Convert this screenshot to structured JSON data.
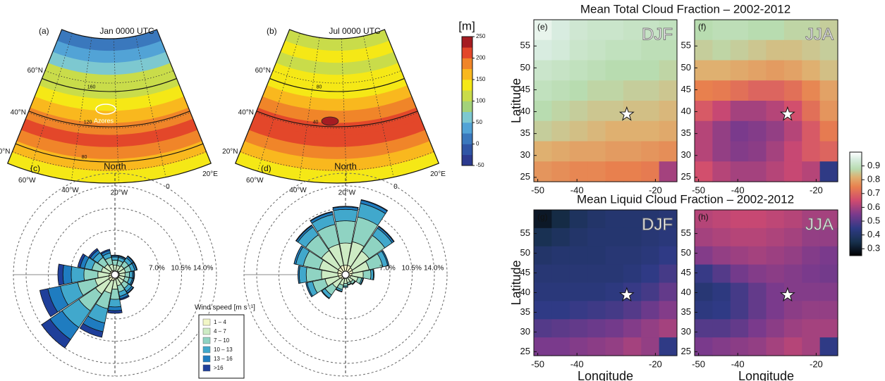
{
  "chart_data": [
    {
      "type": "map",
      "label": "(a)",
      "title": "Jan 0000 UTC",
      "lat_labels": [
        "60°N",
        "40°N",
        "20°N"
      ],
      "lon_labels": [
        "60°W",
        "40°W",
        "20°W",
        "0",
        "20°E"
      ],
      "bands": [
        10,
        40,
        70,
        100,
        120,
        140,
        160,
        185,
        205,
        190,
        160,
        130
      ],
      "contour_labels": [
        "160",
        "120",
        "80"
      ],
      "annotation": "Azores"
    },
    {
      "type": "map",
      "label": "(b)",
      "title": "Jul 0000 UTC",
      "lat_labels": [
        "60°N",
        "40°N",
        "20°N"
      ],
      "lon_labels": [
        "60°W",
        "40°W",
        "20°W",
        "0",
        "20°E"
      ],
      "bands": [
        110,
        125,
        110,
        125,
        140,
        160,
        180,
        200,
        215,
        190,
        160,
        140
      ],
      "contour_labels": [
        "80",
        "40"
      ]
    },
    {
      "type": "colorbar",
      "title": "[m]",
      "lim": [
        -50,
        250
      ],
      "ticks": [
        250,
        200,
        150,
        100,
        50,
        0,
        -50
      ],
      "colors": [
        "#2c3a8f",
        "#2f55a5",
        "#3a78bd",
        "#52a3d6",
        "#7dc8d0",
        "#a3d27a",
        "#c9dc4a",
        "#f5e816",
        "#f9b81e",
        "#f08529",
        "#e3472a",
        "#a51c22"
      ]
    },
    {
      "type": "windrose",
      "label": "(c)",
      "direction_label": "North",
      "rlim": [
        0,
        16
      ],
      "rticks": [
        {
          "value": 7,
          "label": "7.0%"
        },
        {
          "value": 10.5,
          "label": "10.5%"
        },
        {
          "value": 14,
          "label": "14.0%"
        }
      ],
      "legend_title": "Wind speed [m s⁻¹]",
      "series": [
        {
          "name": "1 – 4",
          "color": "#f2f6c6",
          "values": [
            0.6,
            0.6,
            0.7,
            0.7,
            0.7,
            0.7,
            0.7,
            0.7,
            0.8,
            1.0,
            1.2,
            1.0,
            0.9,
            0.8,
            0.8,
            0.7
          ]
        },
        {
          "name": "4 – 7",
          "color": "#cdebc4",
          "values": [
            0.9,
            0.9,
            1.0,
            1.0,
            0.9,
            0.9,
            1.0,
            1.1,
            1.5,
            2.0,
            2.5,
            2.2,
            1.8,
            1.4,
            1.2,
            1.0
          ]
        },
        {
          "name": "7 – 10",
          "color": "#8fd3c2",
          "values": [
            0.8,
            0.8,
            0.9,
            0.9,
            0.7,
            0.7,
            0.9,
            1.0,
            1.6,
            2.5,
            3.2,
            2.8,
            2.2,
            1.5,
            1.3,
            1.1
          ]
        },
        {
          "name": "10 – 13",
          "color": "#41a8cc",
          "values": [
            0.5,
            0.5,
            0.6,
            0.6,
            0.5,
            0.5,
            0.6,
            0.7,
            1.2,
            2.3,
            3.2,
            2.8,
            2.0,
            1.2,
            0.9,
            0.7
          ]
        },
        {
          "name": "13 – 16",
          "color": "#1f7cc0",
          "values": [
            0.2,
            0.2,
            0.3,
            0.3,
            0.2,
            0.2,
            0.3,
            0.4,
            0.6,
            1.4,
            2.3,
            2.0,
            1.3,
            0.7,
            0.5,
            0.4
          ]
        },
        {
          "name": ">16",
          "color": "#1f3f9a",
          "values": [
            0.1,
            0.1,
            0.1,
            0.1,
            0.1,
            0.1,
            0.1,
            0.2,
            0.4,
            0.9,
            1.6,
            1.3,
            0.8,
            0.4,
            0.3,
            0.2
          ]
        }
      ]
    },
    {
      "type": "windrose",
      "label": "(d)",
      "direction_label": "North",
      "rlim": [
        0,
        16
      ],
      "rticks": [
        {
          "value": 7,
          "label": "7.0%"
        },
        {
          "value": 10.5,
          "label": "10.5%"
        },
        {
          "value": 14,
          "label": "14.0%"
        }
      ],
      "series": [
        {
          "color": "#f2f6c6",
          "values": [
            1.5,
            1.5,
            1.3,
            1.2,
            1.0,
            0.8,
            0.6,
            0.6,
            0.6,
            0.7,
            0.9,
            1.1,
            1.2,
            1.3,
            1.4,
            1.5
          ]
        },
        {
          "color": "#cdebc4",
          "values": [
            3.5,
            3.8,
            3.2,
            2.6,
            1.8,
            1.2,
            0.8,
            0.7,
            0.8,
            1.0,
            1.6,
            2.2,
            2.6,
            2.9,
            3.2,
            3.4
          ]
        },
        {
          "color": "#8fd3c2",
          "values": [
            3.5,
            4.0,
            3.0,
            2.2,
            1.2,
            0.6,
            0.4,
            0.3,
            0.4,
            0.7,
            1.4,
            2.0,
            2.4,
            2.6,
            3.0,
            3.2
          ]
        },
        {
          "color": "#41a8cc",
          "values": [
            1.8,
            2.2,
            1.4,
            0.8,
            0.4,
            0.2,
            0.1,
            0.1,
            0.2,
            0.3,
            0.6,
            0.9,
            1.1,
            1.2,
            1.5,
            1.6
          ]
        },
        {
          "color": "#1f7cc0",
          "values": [
            0.4,
            0.5,
            0.3,
            0.2,
            0.1,
            0.1,
            0,
            0,
            0,
            0.1,
            0.1,
            0.2,
            0.2,
            0.3,
            0.3,
            0.4
          ]
        },
        {
          "color": "#1f3f9a",
          "values": [
            0.1,
            0.1,
            0.1,
            0,
            0,
            0,
            0,
            0,
            0,
            0,
            0,
            0,
            0,
            0,
            0.1,
            0.1
          ]
        }
      ]
    },
    {
      "type": "heatmap",
      "title": "Mean Total Cloud Fraction – 2002-2012",
      "ylabel": "Latitude",
      "xlim": [
        -51,
        -14.5
      ],
      "ylim": [
        24,
        61
      ],
      "xticks": [
        -50,
        -40,
        -20
      ],
      "yticks": [
        25,
        30,
        35,
        40,
        45,
        50,
        55
      ],
      "marker": {
        "x": -27.3,
        "y": 39.4
      },
      "panels": [
        {
          "label": "(e)",
          "season": "DJF",
          "values": [
            [
              0.97,
              0.95,
              0.93,
              0.92,
              0.92,
              0.91,
              0.91,
              0.9
            ],
            [
              0.95,
              0.94,
              0.92,
              0.91,
              0.9,
              0.9,
              0.89,
              0.89
            ],
            [
              0.92,
              0.91,
              0.9,
              0.89,
              0.88,
              0.88,
              0.88,
              0.87
            ],
            [
              0.9,
              0.89,
              0.88,
              0.87,
              0.87,
              0.86,
              0.86,
              0.85
            ],
            [
              0.88,
              0.87,
              0.86,
              0.85,
              0.85,
              0.84,
              0.84,
              0.83
            ],
            [
              0.86,
              0.85,
              0.84,
              0.83,
              0.82,
              0.82,
              0.82,
              0.81
            ],
            [
              0.82,
              0.81,
              0.8,
              0.8,
              0.79,
              0.79,
              0.78,
              0.77
            ],
            [
              0.78,
              0.77,
              0.76,
              0.76,
              0.75,
              0.75,
              0.74,
              0.6
            ]
          ]
        },
        {
          "label": "(f)",
          "season": "JJA",
          "values": [
            [
              0.88,
              0.89,
              0.89,
              0.88,
              0.88,
              0.87,
              0.87,
              0.86
            ],
            [
              0.86,
              0.87,
              0.86,
              0.85,
              0.84,
              0.84,
              0.85,
              0.86
            ],
            [
              0.82,
              0.82,
              0.81,
              0.8,
              0.79,
              0.8,
              0.82,
              0.84
            ],
            [
              0.75,
              0.74,
              0.72,
              0.7,
              0.7,
              0.72,
              0.76,
              0.8
            ],
            [
              0.68,
              0.64,
              0.6,
              0.6,
              0.62,
              0.66,
              0.72,
              0.78
            ],
            [
              0.62,
              0.58,
              0.55,
              0.56,
              0.58,
              0.62,
              0.68,
              0.74
            ],
            [
              0.62,
              0.58,
              0.56,
              0.57,
              0.6,
              0.64,
              0.68,
              0.7
            ],
            [
              0.66,
              0.62,
              0.6,
              0.6,
              0.62,
              0.64,
              0.62,
              0.45
            ]
          ]
        }
      ]
    },
    {
      "type": "heatmap",
      "title": "Mean Liquid Cloud Fraction – 2002-2012",
      "ylabel": "Latitude",
      "xlabel": "Longitude",
      "xlim": [
        -51,
        -14.5
      ],
      "ylim": [
        24,
        61
      ],
      "xticks": [
        -50,
        -40,
        -20
      ],
      "yticks": [
        25,
        30,
        35,
        40,
        45,
        50,
        55
      ],
      "marker": {
        "x": -27.3,
        "y": 39.4
      },
      "panels": [
        {
          "label": "(g)",
          "season": "DJF",
          "values": [
            [
              0.3,
              0.34,
              0.38,
              0.4,
              0.41,
              0.41,
              0.41,
              0.42
            ],
            [
              0.36,
              0.38,
              0.4,
              0.41,
              0.41,
              0.41,
              0.42,
              0.43
            ],
            [
              0.4,
              0.41,
              0.41,
              0.41,
              0.42,
              0.42,
              0.43,
              0.45
            ],
            [
              0.42,
              0.42,
              0.42,
              0.42,
              0.42,
              0.43,
              0.45,
              0.48
            ],
            [
              0.43,
              0.43,
              0.43,
              0.43,
              0.44,
              0.46,
              0.48,
              0.52
            ],
            [
              0.45,
              0.45,
              0.46,
              0.47,
              0.48,
              0.5,
              0.53,
              0.56
            ],
            [
              0.5,
              0.51,
              0.52,
              0.53,
              0.54,
              0.56,
              0.58,
              0.6
            ],
            [
              0.55,
              0.55,
              0.56,
              0.57,
              0.58,
              0.6,
              0.58,
              0.45
            ]
          ]
        },
        {
          "label": "(h)",
          "season": "JJA",
          "values": [
            [
              0.62,
              0.63,
              0.64,
              0.64,
              0.63,
              0.62,
              0.6,
              0.6
            ],
            [
              0.6,
              0.61,
              0.62,
              0.62,
              0.61,
              0.6,
              0.58,
              0.58
            ],
            [
              0.56,
              0.58,
              0.59,
              0.6,
              0.59,
              0.58,
              0.56,
              0.55
            ],
            [
              0.46,
              0.5,
              0.54,
              0.56,
              0.57,
              0.56,
              0.55,
              0.54
            ],
            [
              0.42,
              0.44,
              0.48,
              0.52,
              0.55,
              0.56,
              0.56,
              0.56
            ],
            [
              0.44,
              0.45,
              0.48,
              0.52,
              0.55,
              0.57,
              0.58,
              0.58
            ],
            [
              0.5,
              0.5,
              0.52,
              0.55,
              0.57,
              0.59,
              0.6,
              0.6
            ],
            [
              0.55,
              0.56,
              0.57,
              0.58,
              0.6,
              0.62,
              0.6,
              0.45
            ]
          ]
        }
      ]
    },
    {
      "type": "colorbar",
      "lim": [
        0.25,
        1.0
      ],
      "ticks": [
        0.3,
        0.4,
        0.5,
        0.6,
        0.7,
        0.8,
        0.9
      ],
      "colorscale": [
        [
          0.25,
          "#000000"
        ],
        [
          0.35,
          "#17304d"
        ],
        [
          0.45,
          "#2f3a85"
        ],
        [
          0.55,
          "#7a3a8c"
        ],
        [
          0.65,
          "#cf4a70"
        ],
        [
          0.75,
          "#e8804e"
        ],
        [
          0.82,
          "#dfb070"
        ],
        [
          0.88,
          "#b8dcb0"
        ],
        [
          0.95,
          "#d8ece0"
        ],
        [
          1.0,
          "#ffffff"
        ]
      ]
    }
  ]
}
